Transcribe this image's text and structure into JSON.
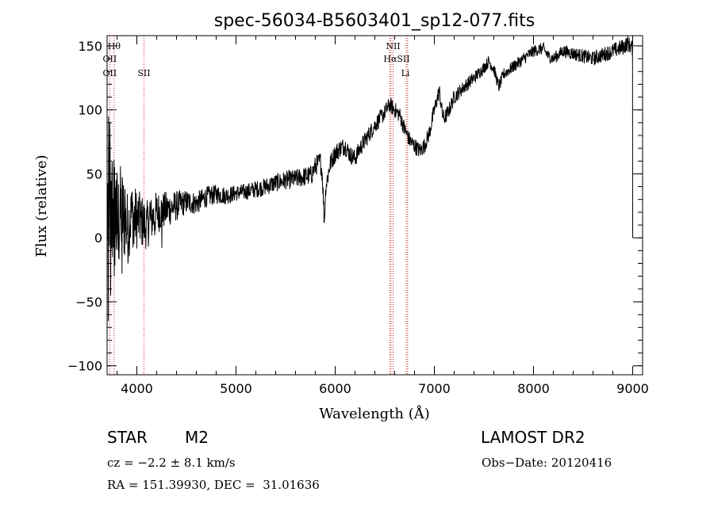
{
  "chart_data": {
    "type": "line",
    "title": "spec-56034-B5603401_sp12-077.fits",
    "xlabel": "Wavelength (Å)",
    "ylabel": "Flux (relative)",
    "xlim": [
      3700,
      9100
    ],
    "ylim": [
      -107,
      158
    ],
    "x_ticks": [
      4000,
      5000,
      6000,
      7000,
      8000,
      9000
    ],
    "y_ticks": [
      -100,
      -50,
      0,
      50,
      100,
      150
    ],
    "x_tick_labels": [
      "4000",
      "5000",
      "6000",
      "7000",
      "8000",
      "9000"
    ],
    "y_tick_labels": [
      "-100",
      "-50",
      "0",
      "50",
      "100",
      "150"
    ],
    "x_minor_step": 200,
    "y_minor_step": 10,
    "grid": false,
    "series": [
      {
        "color": "#000000",
        "noise": [
          [
            3700,
            40
          ],
          [
            3800,
            30
          ],
          [
            3900,
            18
          ],
          [
            4100,
            12
          ],
          [
            4500,
            6
          ],
          [
            5000,
            4
          ],
          [
            5800,
            5
          ],
          [
            6500,
            4
          ],
          [
            7000,
            4
          ],
          [
            7500,
            3
          ],
          [
            8200,
            3
          ],
          [
            8900,
            4
          ],
          [
            9000,
            4
          ]
        ],
        "points": [
          [
            3700,
            15
          ],
          [
            3720,
            40
          ],
          [
            3740,
            5
          ],
          [
            3760,
            25
          ],
          [
            3800,
            10
          ],
          [
            3850,
            20
          ],
          [
            3900,
            8
          ],
          [
            3950,
            18
          ],
          [
            4000,
            15
          ],
          [
            4100,
            10
          ],
          [
            4200,
            20
          ],
          [
            4300,
            22
          ],
          [
            4400,
            25
          ],
          [
            4500,
            28
          ],
          [
            4600,
            27
          ],
          [
            4700,
            32
          ],
          [
            4800,
            34
          ],
          [
            4900,
            33
          ],
          [
            5000,
            35
          ],
          [
            5100,
            36
          ],
          [
            5200,
            38
          ],
          [
            5300,
            40
          ],
          [
            5400,
            43
          ],
          [
            5500,
            45
          ],
          [
            5600,
            46
          ],
          [
            5700,
            48
          ],
          [
            5760,
            49
          ],
          [
            5800,
            56
          ],
          [
            5850,
            60
          ],
          [
            5870,
            50
          ],
          [
            5890,
            12
          ],
          [
            5905,
            40
          ],
          [
            5950,
            58
          ],
          [
            6000,
            66
          ],
          [
            6050,
            70
          ],
          [
            6100,
            72
          ],
          [
            6150,
            65
          ],
          [
            6200,
            62
          ],
          [
            6250,
            70
          ],
          [
            6300,
            76
          ],
          [
            6350,
            82
          ],
          [
            6400,
            88
          ],
          [
            6450,
            93
          ],
          [
            6500,
            98
          ],
          [
            6550,
            104
          ],
          [
            6600,
            100
          ],
          [
            6650,
            96
          ],
          [
            6700,
            85
          ],
          [
            6750,
            76
          ],
          [
            6800,
            72
          ],
          [
            6850,
            68
          ],
          [
            6900,
            72
          ],
          [
            6950,
            82
          ],
          [
            7000,
            100
          ],
          [
            7050,
            115
          ],
          [
            7080,
            97
          ],
          [
            7100,
            93
          ],
          [
            7150,
            100
          ],
          [
            7200,
            110
          ],
          [
            7300,
            118
          ],
          [
            7400,
            125
          ],
          [
            7500,
            133
          ],
          [
            7550,
            138
          ],
          [
            7600,
            132
          ],
          [
            7650,
            118
          ],
          [
            7700,
            128
          ],
          [
            7800,
            134
          ],
          [
            7900,
            140
          ],
          [
            8000,
            146
          ],
          [
            8100,
            148
          ],
          [
            8150,
            142
          ],
          [
            8200,
            140
          ],
          [
            8300,
            146
          ],
          [
            8400,
            144
          ],
          [
            8500,
            142
          ],
          [
            8600,
            140
          ],
          [
            8700,
            143
          ],
          [
            8800,
            146
          ],
          [
            8900,
            149
          ],
          [
            8950,
            152
          ],
          [
            9000,
            148
          ]
        ],
        "spikes": [
          [
            3712,
            -65
          ],
          [
            3725,
            90
          ],
          [
            3735,
            -45
          ],
          [
            3750,
            60
          ],
          [
            3770,
            -30
          ],
          [
            3790,
            45
          ],
          [
            3810,
            -10
          ],
          [
            3830,
            35
          ],
          [
            3850,
            -28
          ],
          [
            3880,
            38
          ],
          [
            3910,
            -20
          ],
          [
            3945,
            35
          ],
          [
            3970,
            -5
          ],
          [
            4020,
            32
          ],
          [
            4080,
            0
          ],
          [
            4130,
            28
          ],
          [
            4180,
            2
          ],
          [
            4250,
            -8
          ]
        ]
      }
    ],
    "lines": {
      "color": "#cc2222",
      "wavelengths": [
        3727,
        3771,
        4072,
        6550,
        6563,
        6584,
        6717,
        6731
      ]
    },
    "annotations": [
      {
        "text": "Hθ",
        "x": 3771,
        "row": 1
      },
      {
        "text": "OII",
        "x": 3727,
        "row": 2
      },
      {
        "text": "OII",
        "x": 3727,
        "row": 3
      },
      {
        "text": "SII",
        "x": 4072,
        "row": 3
      },
      {
        "text": "NII",
        "x": 6584,
        "row": 1
      },
      {
        "text": "HαSII",
        "x": 6620,
        "row": 2
      },
      {
        "text": "Li",
        "x": 6708,
        "row": 3
      }
    ]
  },
  "info": {
    "object_type": "STAR",
    "subclass": "M2",
    "survey": "LAMOST DR2",
    "cz": "cz = −2.2 ± 8.1 km/s",
    "obs_date": "Obs−Date: 20120416",
    "coords": "RA = 151.39930, DEC =  31.01636"
  }
}
